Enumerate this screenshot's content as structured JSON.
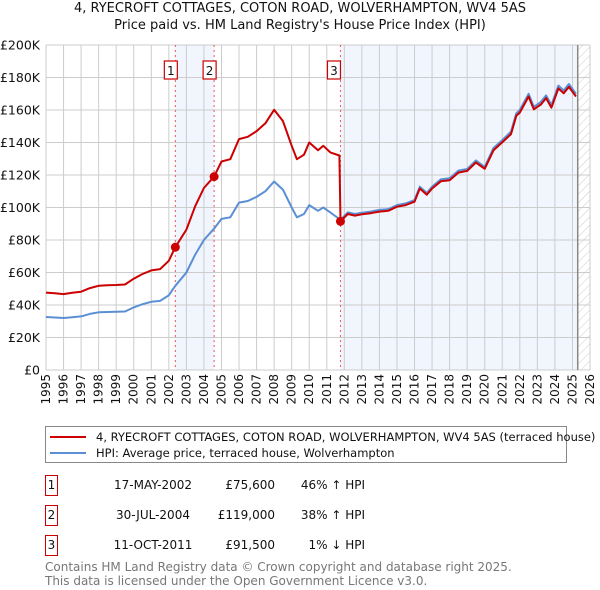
{
  "chart_data": {
    "type": "line",
    "title": "4, RYECROFT COTTAGES, COTON ROAD, WOLVERHAMPTON, WV4 5AS",
    "subtitle": "Price paid vs. HM Land Registry's House Price Index (HPI)",
    "xlim": [
      1995,
      2026
    ],
    "ylim": [
      0,
      200000
    ],
    "x_ticks": [
      "1995",
      "1996",
      "1997",
      "1998",
      "1999",
      "2000",
      "2001",
      "2002",
      "2003",
      "2004",
      "2005",
      "2006",
      "2007",
      "2008",
      "2009",
      "2010",
      "2011",
      "2012",
      "2013",
      "2014",
      "2015",
      "2016",
      "2017",
      "2018",
      "2019",
      "2020",
      "2021",
      "2022",
      "2023",
      "2024",
      "2025",
      "2026"
    ],
    "y_ticks": [
      {
        "v": 0,
        "label": "£0"
      },
      {
        "v": 20000,
        "label": "£20K"
      },
      {
        "v": 40000,
        "label": "£40K"
      },
      {
        "v": 60000,
        "label": "£60K"
      },
      {
        "v": 80000,
        "label": "£80K"
      },
      {
        "v": 100000,
        "label": "£100K"
      },
      {
        "v": 120000,
        "label": "£120K"
      },
      {
        "v": 140000,
        "label": "£140K"
      },
      {
        "v": 160000,
        "label": "£160K"
      },
      {
        "v": 180000,
        "label": "£180K"
      },
      {
        "v": 200000,
        "label": "£200K"
      }
    ],
    "grid": true,
    "data_end": 2025.3,
    "series": [
      {
        "name": "4, RYECROFT COTTAGES, COTON ROAD, WOLVERHAMPTON, WV4 5AS (terraced house)",
        "color": "#cc0000",
        "x": [
          1995,
          1995.5,
          1996,
          1996.5,
          1997,
          1997.5,
          1998,
          1998.5,
          1999,
          1999.5,
          2000,
          2000.5,
          2001,
          2001.5,
          2002,
          2002.37,
          2003,
          2003.5,
          2004,
          2004.58,
          2005,
          2005.5,
          2006,
          2006.5,
          2007,
          2007.5,
          2008,
          2008.5,
          2009,
          2009.3,
          2009.7,
          2010,
          2010.5,
          2010.8,
          2011.2,
          2011.72,
          2011.78,
          2012.2,
          2012.6,
          2013,
          2013.5,
          2014,
          2014.5,
          2015,
          2015.5,
          2016,
          2016.3,
          2016.7,
          2017,
          2017.5,
          2018,
          2018.5,
          2019,
          2019.5,
          2020,
          2020.5,
          2021,
          2021.5,
          2021.8,
          2022,
          2022.5,
          2022.8,
          2023.2,
          2023.5,
          2023.8,
          2024.2,
          2024.5,
          2024.8,
          2025.2
        ],
        "values": [
          47.6,
          47.2,
          46.7,
          47.5,
          48.2,
          50.4,
          51.8,
          52.1,
          52.3,
          52.6,
          56.2,
          59.1,
          61.3,
          62.1,
          67.2,
          75.6,
          86.4,
          100.8,
          112,
          119,
          128.3,
          129.7,
          142.1,
          143.5,
          147,
          151.8,
          160.1,
          153.2,
          138,
          129.7,
          132.5,
          140,
          135.2,
          138,
          133.9,
          132,
          91.5,
          96,
          95,
          95.8,
          96.5,
          97.5,
          98,
          100.5,
          101.5,
          103.6,
          111.7,
          107.9,
          111.7,
          116.1,
          116.8,
          121.5,
          122.5,
          127.7,
          123.8,
          135.2,
          140.1,
          145.2,
          156.4,
          158.4,
          168.3,
          160.4,
          163.4,
          167.3,
          161.4,
          173.3,
          170.3,
          174.2,
          168.3
        ]
      },
      {
        "name": "HPI: Average price, terraced house, Wolverhampton",
        "color": "#5b8fd4",
        "x": [
          1995,
          1995.5,
          1996,
          1996.5,
          1997,
          1997.5,
          1998,
          1998.5,
          1999,
          1999.5,
          2000,
          2000.5,
          2001,
          2001.5,
          2002,
          2002.37,
          2003,
          2003.5,
          2004,
          2004.58,
          2005,
          2005.5,
          2006,
          2006.5,
          2007,
          2007.5,
          2008,
          2008.5,
          2009,
          2009.3,
          2009.7,
          2010,
          2010.5,
          2010.8,
          2011.2,
          2011.78,
          2012.2,
          2012.6,
          2013,
          2013.5,
          2014,
          2014.5,
          2015,
          2015.5,
          2016,
          2016.3,
          2016.7,
          2017,
          2017.5,
          2018,
          2018.5,
          2019,
          2019.5,
          2020,
          2020.5,
          2021,
          2021.5,
          2021.8,
          2022,
          2022.5,
          2022.8,
          2023.2,
          2023.5,
          2023.8,
          2024.2,
          2024.5,
          2024.8,
          2025.2
        ],
        "values": [
          32.6,
          32.3,
          32,
          32.5,
          33,
          34.5,
          35.5,
          35.7,
          35.8,
          36,
          38.5,
          40.5,
          42,
          42.5,
          46,
          51.8,
          60,
          71,
          80,
          87,
          93,
          94,
          103,
          104,
          106.5,
          110,
          116,
          111,
          100,
          94,
          96,
          101.5,
          98,
          100,
          97,
          92.4,
          97,
          96,
          96.8,
          97.5,
          98.5,
          99,
          101.5,
          102.5,
          104.6,
          112.8,
          109,
          112.8,
          117.3,
          118,
          122.7,
          123.7,
          129,
          125,
          136.6,
          141.5,
          146.7,
          158,
          160,
          170,
          162,
          165,
          169,
          163,
          175,
          172,
          176,
          170
        ]
      }
    ],
    "value_unit": "thousands GBP",
    "sales": [
      {
        "num": "1",
        "x": 2002.37,
        "value": 75.6,
        "date": "17-MAY-2002",
        "price": "£75,600",
        "pct": "46% ↑ HPI"
      },
      {
        "num": "2",
        "x": 2004.58,
        "value": 119,
        "date": "30-JUL-2004",
        "price": "£119,000",
        "pct": "38% ↑ HPI"
      },
      {
        "num": "3",
        "x": 2011.78,
        "value": 91.5,
        "date": "11-OCT-2011",
        "price": "£91,500",
        "pct": "1% ↓ HPI"
      }
    ]
  },
  "footer": {
    "line1": "Contains HM Land Registry data © Crown copyright and database right 2025.",
    "line2": "This data is licensed under the Open Government Licence v3.0."
  }
}
